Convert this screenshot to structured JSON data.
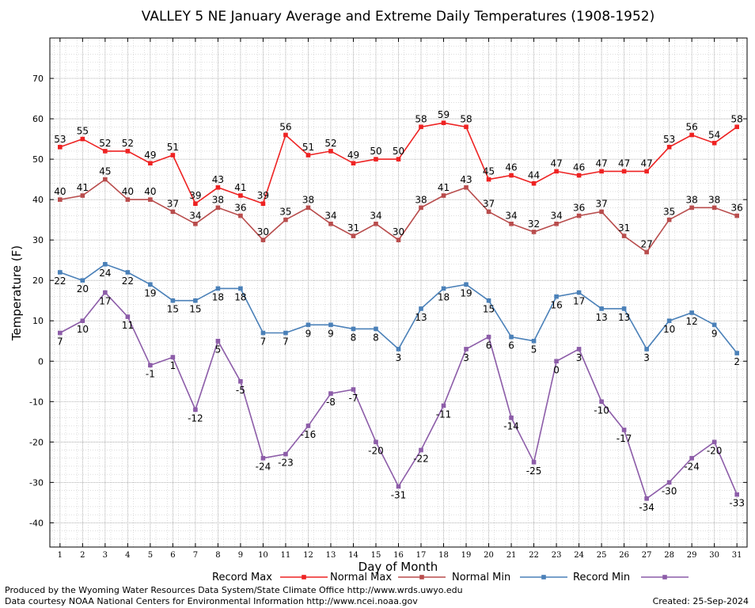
{
  "chart_data": {
    "type": "line",
    "title": "VALLEY 5 NE January Average and Extreme Daily Temperatures (1908-1952)",
    "xlabel": "Day of Month",
    "ylabel": "Temperature (F)",
    "ylim": [
      -46,
      80
    ],
    "yticks": [
      -40,
      -30,
      -20,
      -10,
      0,
      10,
      20,
      30,
      40,
      50,
      60,
      70
    ],
    "grid": true,
    "x": [
      1,
      2,
      3,
      4,
      5,
      6,
      7,
      8,
      9,
      10,
      11,
      12,
      13,
      14,
      15,
      16,
      17,
      18,
      19,
      20,
      21,
      22,
      23,
      24,
      25,
      26,
      27,
      28,
      29,
      30,
      31
    ],
    "series": [
      {
        "name": "Record Max",
        "color": "#ee2222",
        "label_pos": "above",
        "values": [
          53,
          55,
          52,
          52,
          49,
          51,
          39,
          43,
          41,
          39,
          56,
          51,
          52,
          49,
          50,
          50,
          58,
          59,
          58,
          45,
          46,
          44,
          47,
          46,
          47,
          47,
          47,
          53,
          56,
          54,
          58
        ]
      },
      {
        "name": "Normal Max",
        "color": "#b84c4c",
        "label_pos": "above",
        "values": [
          40,
          41,
          45,
          40,
          40,
          37,
          34,
          38,
          36,
          30,
          35,
          38,
          34,
          31,
          34,
          30,
          38,
          41,
          43,
          37,
          34,
          32,
          34,
          36,
          37,
          31,
          27,
          35,
          38,
          38,
          36
        ]
      },
      {
        "name": "Normal Min",
        "color": "#4a80b8",
        "label_pos": "below",
        "values": [
          22,
          20,
          24,
          22,
          19,
          15,
          15,
          18,
          18,
          7,
          7,
          9,
          9,
          8,
          8,
          3,
          13,
          18,
          19,
          15,
          6,
          5,
          16,
          17,
          13,
          13,
          3,
          10,
          12,
          9,
          2
        ]
      },
      {
        "name": "Record Min",
        "color": "#8c5ca8",
        "label_pos": "below",
        "values": [
          7,
          10,
          17,
          11,
          -1,
          1,
          -12,
          5,
          -5,
          -24,
          -23,
          -16,
          -8,
          -7,
          -20,
          -31,
          -22,
          -11,
          3,
          6,
          -14,
          -25,
          0,
          3,
          -10,
          -17,
          -34,
          -30,
          -24,
          -20,
          -33
        ]
      }
    ],
    "legend_placement": "bottom"
  },
  "footer": {
    "line1": "Produced by the Wyoming Water Resources Data System/State Climate Office http://www.wrds.uwyo.edu",
    "line2": "Data courtesy NOAA National Centers for Environmental Information http://www.ncei.noaa.gov",
    "created": "Created:  25-Sep-2024"
  }
}
